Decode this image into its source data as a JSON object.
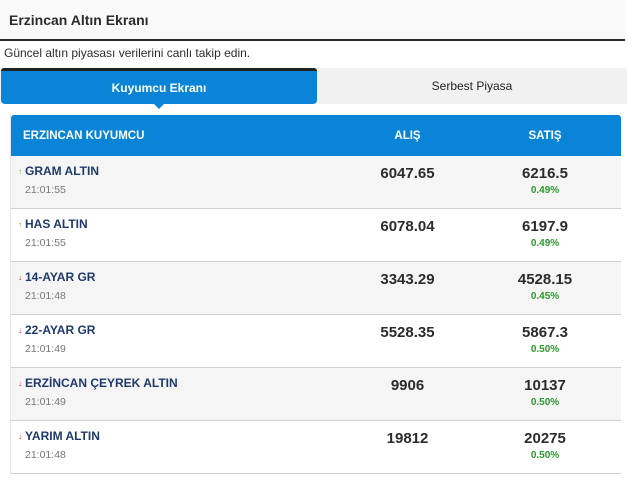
{
  "header": {
    "title": "Erzincan Altın Ekranı"
  },
  "subtitle": "Güncel altın piyasası verilerini canlı takip edin.",
  "tabs": [
    {
      "label": "Kuyumcu Ekranı",
      "active": true
    },
    {
      "label": "Serbest Piyasa",
      "active": false
    }
  ],
  "table": {
    "columns": {
      "name": "ERZINCAN KUYUMCU",
      "alis": "ALIŞ",
      "satis": "SATIŞ"
    },
    "rows": [
      {
        "name": "GRAM ALTIN",
        "time": "21:01:55",
        "alis": "6047.65",
        "satis": "6216.5",
        "pct": "0.49%",
        "trend": "up"
      },
      {
        "name": "HAS ALTIN",
        "time": "21:01:55",
        "alis": "6078.04",
        "satis": "6197.9",
        "pct": "0.49%",
        "trend": "up"
      },
      {
        "name": "14-AYAR GR",
        "time": "21:01:48",
        "alis": "3343.29",
        "satis": "4528.15",
        "pct": "0.45%",
        "trend": "down"
      },
      {
        "name": "22-AYAR GR",
        "time": "21:01:49",
        "alis": "5528.35",
        "satis": "5867.3",
        "pct": "0.50%",
        "trend": "down"
      },
      {
        "name": "ERZİNCAN ÇEYREK ALTIN",
        "time": "21:01:49",
        "alis": "9906",
        "satis": "10137",
        "pct": "0.50%",
        "trend": "down"
      },
      {
        "name": "YARIM ALTIN",
        "time": "21:01:48",
        "alis": "19812",
        "satis": "20275",
        "pct": "0.50%",
        "trend": "down"
      }
    ]
  },
  "icons": {
    "up": "↑",
    "down": "↓"
  },
  "colors": {
    "accent": "#0a84d6",
    "positive": "#2a9a2a",
    "down_arrow": "#dd2222",
    "up_arrow": "#8a9a3a",
    "name_text": "#1e3a6a"
  }
}
